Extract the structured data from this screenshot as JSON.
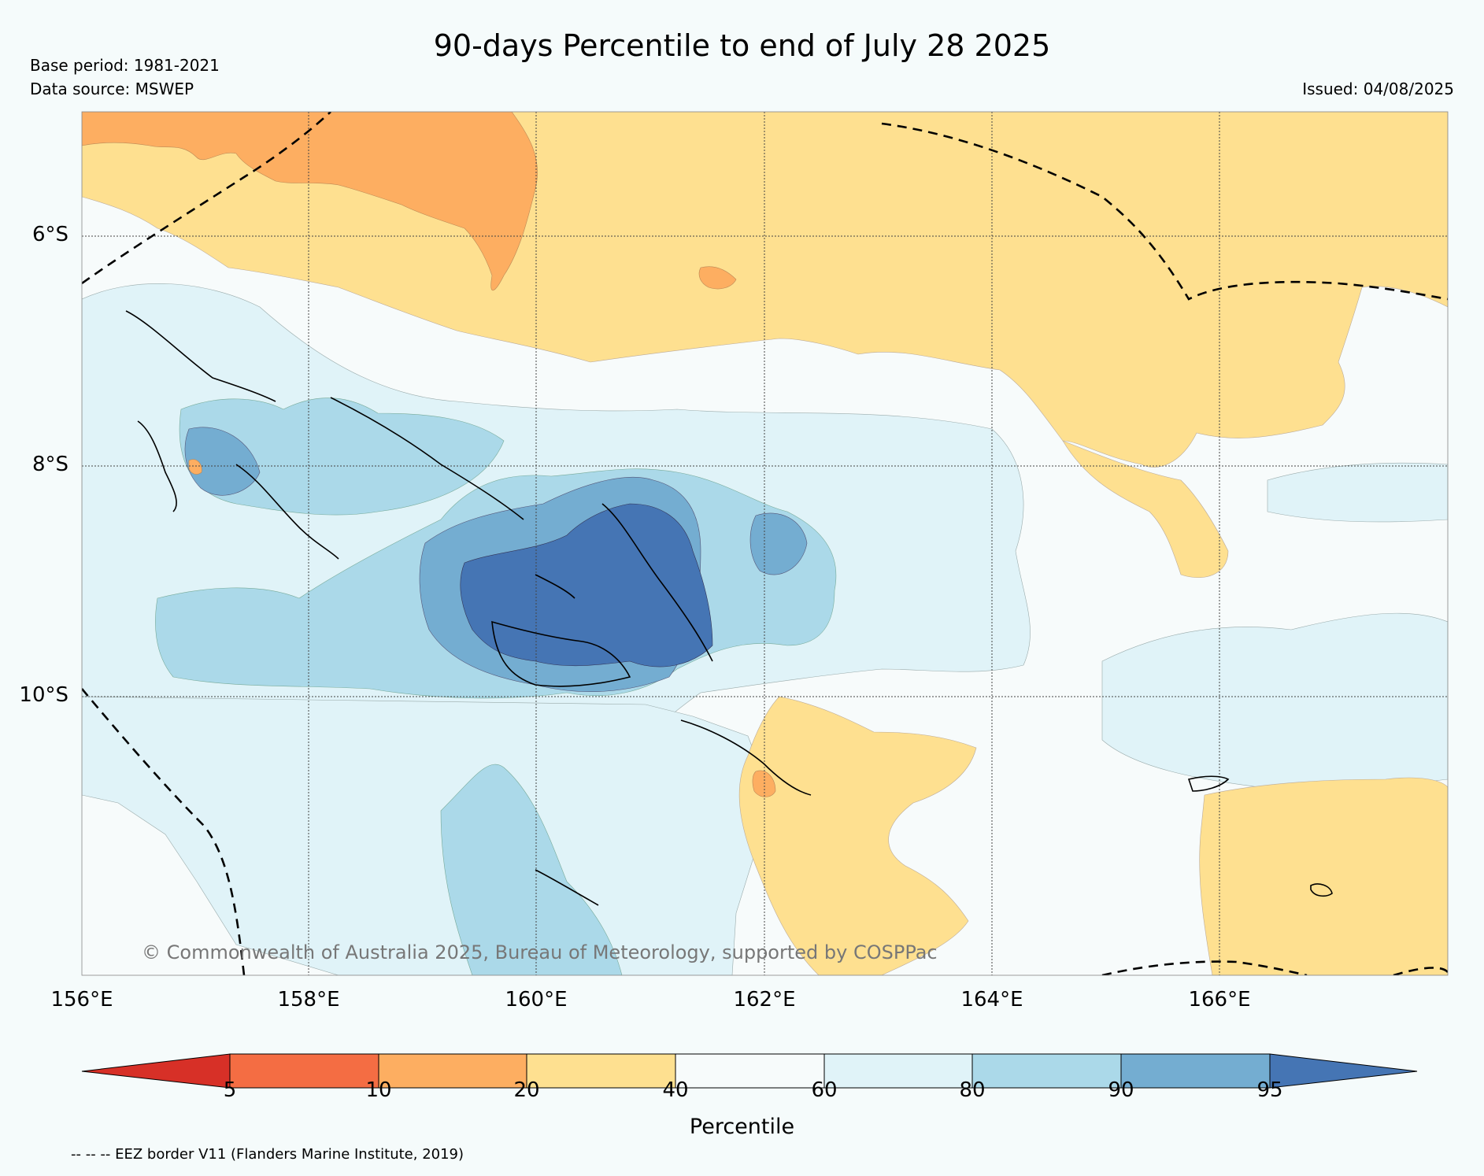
{
  "header": {
    "title": "90-days Percentile to end of July 28 2025",
    "base_period": "Base period: 1981-2021",
    "data_source": "Data source: MSWEP",
    "issued": "Issued: 04/08/2025"
  },
  "map": {
    "lat_labels": [
      "6°S",
      "8°S",
      "10°S"
    ],
    "lon_labels": [
      "156°E",
      "158°E",
      "160°E",
      "162°E",
      "164°E",
      "166°E"
    ],
    "copyright": "© Commonwealth of Australia 2025, Bureau of Meteorology, supported by COSPPac"
  },
  "colorbar": {
    "title": "Percentile",
    "ticks": [
      "5",
      "10",
      "20",
      "40",
      "60",
      "80",
      "90",
      "95"
    ],
    "colors": [
      "#d73027",
      "#f46d43",
      "#fdae61",
      "#fee090",
      "#f7fbfb",
      "#e0f3f8",
      "#abd9e9",
      "#74add1",
      "#4575b4"
    ]
  },
  "legend_note": "-- -- -- EEZ border V11 (Flanders Marine Institute, 2019)"
}
